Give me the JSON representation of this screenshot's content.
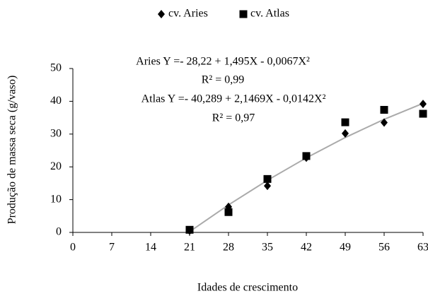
{
  "chart_data": {
    "type": "scatter",
    "x_label": "Idades de crescimento",
    "y_label": "Produção de massa seca (g/vaso)",
    "x": [
      21,
      28,
      35,
      42,
      49,
      56,
      63
    ],
    "series": [
      {
        "name": "cv. Aries",
        "color": "#000000",
        "marker": "diamond",
        "values": [
          0.5,
          7.8,
          14.2,
          22.8,
          30.2,
          33.5,
          39.2
        ]
      },
      {
        "name": "cv. Atlas",
        "color": "#000000",
        "marker": "square",
        "values": [
          0.8,
          6.2,
          16.3,
          23.3,
          33.6,
          37.4,
          36.2
        ]
      }
    ],
    "trendline": {
      "color": "#aaaaaa",
      "x": [
        21,
        28,
        35,
        42,
        49,
        56,
        63
      ],
      "values": [
        0.22,
        8.39,
        15.9,
        22.75,
        28.95,
        34.49,
        39.37
      ]
    },
    "annotations": [
      "Aries Y =- 28,22 + 1,495X - 0,0067X²",
      "R² = 0,99",
      "Atlas Y =- 40,289  + 2,1469X - 0,0142X²",
      "R² = 0,97"
    ],
    "xlim": [
      0,
      63
    ],
    "xticks": [
      0,
      7,
      14,
      21,
      28,
      35,
      42,
      49,
      56,
      63
    ],
    "ylim": [
      0,
      50
    ],
    "yticks": [
      0,
      10,
      20,
      30,
      40,
      50
    ],
    "legend": "top"
  }
}
